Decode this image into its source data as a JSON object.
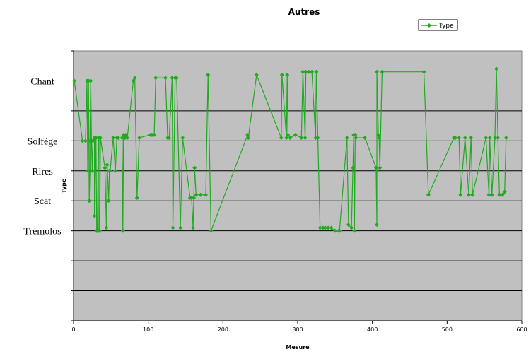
{
  "chart_data": {
    "type": "line",
    "title": "Autres",
    "xlabel": "Mesure",
    "ylabel": "Type",
    "xlim": [
      0,
      600
    ],
    "x_ticks": [
      0,
      100,
      200,
      300,
      400,
      500,
      600
    ],
    "ylim": [
      -3,
      6
    ],
    "y_categories": [
      {
        "label": "Trémolos",
        "value": 0
      },
      {
        "label": "Scat",
        "value": 1
      },
      {
        "label": "Rires",
        "value": 2
      },
      {
        "label": "Solfège",
        "value": 3
      },
      {
        "label": "Chant",
        "value": 5
      }
    ],
    "grid": true,
    "legend_position": "top-right",
    "plot_background": "#c0c0c0",
    "series": [
      {
        "name": "Type",
        "color": "#22aa22",
        "points": [
          [
            1,
            5.0
          ],
          [
            12,
            3.0
          ],
          [
            16,
            3.0
          ],
          [
            18,
            5.0
          ],
          [
            19,
            2.0
          ],
          [
            20,
            5.0
          ],
          [
            21,
            1.0
          ],
          [
            22,
            2.0
          ],
          [
            22,
            3.0
          ],
          [
            23,
            5.0
          ],
          [
            24,
            3.0
          ],
          [
            25,
            2.0
          ],
          [
            26,
            3.0
          ],
          [
            28,
            3.1
          ],
          [
            28,
            0.5
          ],
          [
            30,
            3.1
          ],
          [
            31,
            0.0
          ],
          [
            31,
            0.0
          ],
          [
            32,
            0.0
          ],
          [
            33,
            3.1
          ],
          [
            34,
            3.1
          ],
          [
            34,
            0.0
          ],
          [
            35,
            0.0
          ],
          [
            36,
            3.1
          ],
          [
            42,
            2.1
          ],
          [
            44,
            0.1
          ],
          [
            45,
            2.2
          ],
          [
            47,
            1.0
          ],
          [
            48,
            2.0
          ],
          [
            49,
            2.0
          ],
          [
            53,
            3.1
          ],
          [
            56,
            2.0
          ],
          [
            58,
            3.1
          ],
          [
            60,
            3.1
          ],
          [
            65,
            3.1
          ],
          [
            66,
            0.0
          ],
          [
            67,
            3.2
          ],
          [
            68,
            3.1
          ],
          [
            69,
            3.1
          ],
          [
            70,
            3.2
          ],
          [
            72,
            3.1
          ],
          [
            80,
            5.0
          ],
          [
            82,
            5.1
          ],
          [
            85,
            1.1
          ],
          [
            88,
            3.1
          ],
          [
            103,
            3.2
          ],
          [
            105,
            3.2
          ],
          [
            108,
            3.2
          ],
          [
            110,
            5.1
          ],
          [
            123,
            5.1
          ],
          [
            126,
            3.1
          ],
          [
            128,
            3.1
          ],
          [
            132,
            5.1
          ],
          [
            133,
            0.1
          ],
          [
            136,
            5.1
          ],
          [
            138,
            5.1
          ],
          [
            143,
            0.1
          ],
          [
            146,
            3.1
          ],
          [
            156,
            1.1
          ],
          [
            158,
            1.1
          ],
          [
            160,
            0.1
          ],
          [
            161,
            1.1
          ],
          [
            162,
            2.1
          ],
          [
            164,
            1.2
          ],
          [
            170,
            1.2
          ],
          [
            177,
            1.2
          ],
          [
            180,
            5.2
          ],
          [
            184,
            0.0
          ],
          [
            233,
            3.2
          ],
          [
            234,
            3.1
          ],
          [
            245,
            5.2
          ],
          [
            278,
            3.1
          ],
          [
            279,
            5.2
          ],
          [
            285,
            3.1
          ],
          [
            286,
            5.2
          ],
          [
            287,
            3.2
          ],
          [
            290,
            3.1
          ],
          [
            297,
            3.2
          ],
          [
            305,
            3.1
          ],
          [
            307,
            5.3
          ],
          [
            310,
            3.1
          ],
          [
            311,
            5.3
          ],
          [
            315,
            5.3
          ],
          [
            319,
            5.3
          ],
          [
            324,
            3.1
          ],
          [
            325,
            5.3
          ],
          [
            327,
            3.1
          ],
          [
            330,
            0.1
          ],
          [
            334,
            0.1
          ],
          [
            337,
            0.1
          ],
          [
            341,
            0.1
          ],
          [
            345,
            0.1
          ],
          [
            350,
            0.0
          ],
          [
            355,
            0.0
          ],
          [
            356,
            0.0
          ],
          [
            366,
            3.1
          ],
          [
            368,
            0.2
          ],
          [
            372,
            0.1
          ],
          [
            374,
            2.1
          ],
          [
            375,
            3.2
          ],
          [
            376,
            0.0
          ],
          [
            377,
            3.2
          ],
          [
            378,
            3.1
          ],
          [
            390,
            3.1
          ],
          [
            405,
            2.1
          ],
          [
            406,
            0.2
          ],
          [
            406,
            5.3
          ],
          [
            408,
            3.2
          ],
          [
            409,
            3.1
          ],
          [
            410,
            2.1
          ],
          [
            413,
            5.3
          ],
          [
            469,
            5.3
          ],
          [
            475,
            1.2
          ],
          [
            509,
            3.1
          ],
          [
            511,
            3.1
          ],
          [
            516,
            3.1
          ],
          [
            518,
            1.2
          ],
          [
            524,
            3.1
          ],
          [
            529,
            1.2
          ],
          [
            532,
            3.1
          ],
          [
            534,
            1.2
          ],
          [
            552,
            3.1
          ],
          [
            556,
            1.2
          ],
          [
            557,
            3.1
          ],
          [
            560,
            1.2
          ],
          [
            564,
            3.1
          ],
          [
            566,
            5.4
          ],
          [
            568,
            3.1
          ],
          [
            570,
            1.2
          ],
          [
            574,
            1.2
          ],
          [
            577,
            1.3
          ],
          [
            579,
            3.1
          ]
        ]
      }
    ]
  }
}
